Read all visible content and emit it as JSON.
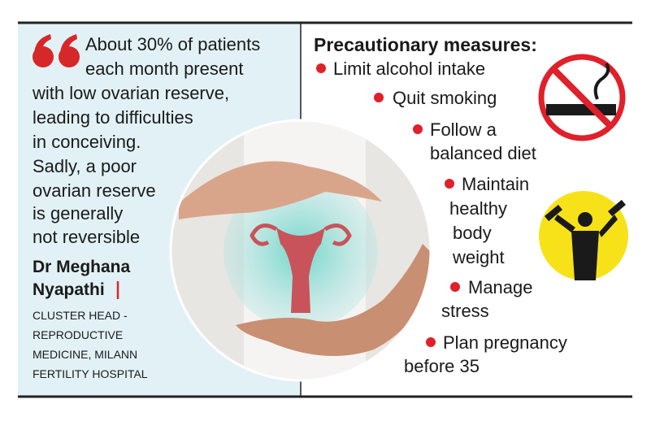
{
  "quote": {
    "lines": [
      "About 30% of patients",
      "each month present",
      "with low ovarian reserve,",
      "leading to difficulties",
      "in conceiving.",
      "Sadly, a poor",
      "ovarian reserve",
      "is generally",
      "not reversible"
    ]
  },
  "author": {
    "name": [
      "Dr Meghana",
      "Nyapathi"
    ],
    "title": [
      "CLUSTER HEAD -",
      "REPRODUCTIVE",
      "MEDICINE, MILANN",
      "FERTILITY HOSPITAL"
    ]
  },
  "measures": {
    "heading": "Precautionary measures:",
    "items": [
      {
        "lines": [
          "Limit alcohol intake"
        ]
      },
      {
        "lines": [
          "Quit smoking"
        ]
      },
      {
        "lines": [
          "Follow a",
          "balanced diet"
        ]
      },
      {
        "lines": [
          "Maintain",
          "healthy",
          "body",
          "weight"
        ]
      },
      {
        "lines": [
          "Manage",
          "stress"
        ]
      },
      {
        "lines": [
          "Plan pregnancy",
          "before 35"
        ]
      }
    ]
  }
}
